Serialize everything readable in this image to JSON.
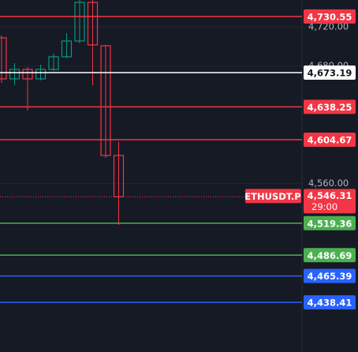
{
  "chart_data": {
    "type": "candlestick",
    "categories": [
      null,
      null,
      null,
      null,
      null,
      null,
      null,
      null,
      null,
      null
    ],
    "series": [
      {
        "open": [
          4708.7,
          4666.8,
          4676.5,
          4666.8,
          4676.5,
          4689.4,
          4705.5,
          4745.0,
          4700.6,
          4588.5
        ],
        "high": [
          4711.0,
          4682.9,
          4678.9,
          4681.3,
          4692.6,
          4713.5,
          4747.4,
          4747.4,
          4701.5,
          4602.3
        ],
        "low": [
          4662.7,
          4660.3,
          4634.5,
          4665.2,
          4674.8,
          4687.9,
          4703.1,
          4660.3,
          4586.0,
          4517.6
        ],
        "close": [
          4666.8,
          4676.5,
          4666.8,
          4676.5,
          4689.4,
          4705.5,
          4745.0,
          4701.5,
          4588.5,
          4546.31
        ],
        "up_color": "#089981",
        "down_color": "#f23645"
      }
    ],
    "ylim": [
      4387.7,
      4747.4
    ],
    "yticks": [
      {
        "value": 4720,
        "label": "4,720.00"
      },
      {
        "value": 4680,
        "label": "4,680.00"
      },
      {
        "value": 4560,
        "label": "4,560.00"
      }
    ],
    "price_lines": [
      {
        "value": 4730.55,
        "label": "4,730.55",
        "color": "#f23645"
      },
      {
        "value": 4673.19,
        "label": "4,673.19",
        "color": "#ffffff"
      },
      {
        "value": 4638.25,
        "label": "4,638.25",
        "color": "#f23645"
      },
      {
        "value": 4604.67,
        "label": "4,604.67",
        "color": "#f23645"
      },
      {
        "value": 4519.36,
        "label": "4,519.36",
        "color": "#4caf50"
      },
      {
        "value": 4486.69,
        "label": "4,486.69",
        "color": "#4caf50"
      },
      {
        "value": 4465.39,
        "label": "4,465.39",
        "color": "#2962ff"
      },
      {
        "value": 4438.41,
        "label": "4,438.41",
        "color": "#2962ff"
      }
    ],
    "current_price": {
      "symbol": "ETHUSDT.P",
      "value": 4546.31,
      "label": "4,546.31",
      "countdown": "29:00",
      "color": "#f23645"
    }
  }
}
